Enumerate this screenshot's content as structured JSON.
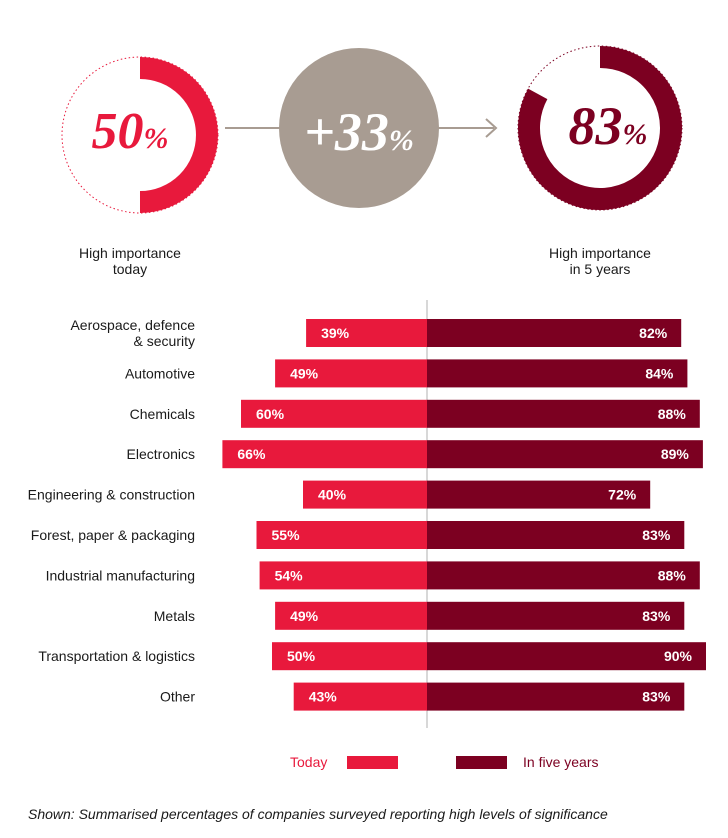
{
  "summary": {
    "today": {
      "value": "50",
      "unit": "%",
      "caption": [
        "High importance",
        "today"
      ],
      "color": "#e8193c"
    },
    "change": {
      "value": "+33",
      "unit": "%",
      "color": "#a89c92"
    },
    "future": {
      "value": "83",
      "unit": "%",
      "caption": [
        "High importance",
        "in 5 years"
      ],
      "color": "#7c0021"
    }
  },
  "chart_data": {
    "type": "bar",
    "orientation": "horizontal-diverging",
    "categories": [
      [
        "Aerospace, defence",
        "& security"
      ],
      [
        "Automotive"
      ],
      [
        "Chemicals"
      ],
      [
        "Electronics"
      ],
      [
        "Engineering & construction"
      ],
      [
        "Forest, paper & packaging"
      ],
      [
        "Industrial manufacturing"
      ],
      [
        "Metals"
      ],
      [
        "Transportation & logistics"
      ],
      [
        "Other"
      ]
    ],
    "series": [
      {
        "name": "Today",
        "color": "#e8193c",
        "values": [
          39,
          49,
          60,
          66,
          40,
          55,
          54,
          49,
          50,
          43
        ]
      },
      {
        "name": "In five years",
        "color": "#7c0021",
        "values": [
          82,
          84,
          88,
          89,
          72,
          83,
          88,
          83,
          90,
          83
        ]
      }
    ],
    "value_suffix": "%",
    "legend_position": "bottom"
  },
  "footnote": "Shown: Summarised percentages of companies surveyed reporting high levels of significance"
}
